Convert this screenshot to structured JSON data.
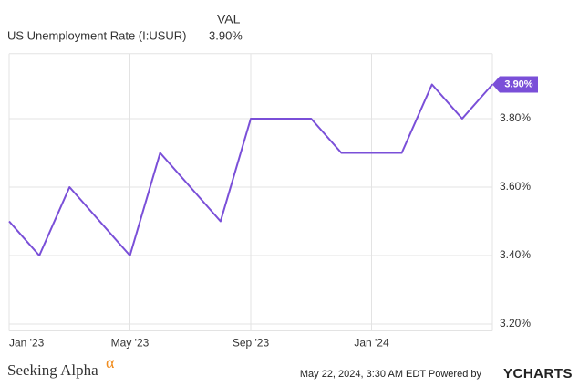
{
  "chart_data": {
    "type": "line",
    "header": {
      "column": "VAL",
      "name": "US Unemployment Rate (I:USUR)",
      "value": "3.90%"
    },
    "categories": [
      "Jan '23",
      null,
      null,
      null,
      "May '23",
      null,
      null,
      null,
      "Sep '23",
      null,
      null,
      null,
      "Jan '24",
      null,
      null,
      null,
      null
    ],
    "series": [
      {
        "name": "US Unemployment Rate (I:USUR)",
        "color": "#7a4fd8",
        "values": [
          3.5,
          3.4,
          3.6,
          3.5,
          3.4,
          3.7,
          3.6,
          3.5,
          3.8,
          3.8,
          3.8,
          3.7,
          3.7,
          3.7,
          3.9,
          3.8,
          3.9
        ],
        "end_label": "3.90%"
      }
    ],
    "ylim": [
      3.18,
      3.99
    ],
    "yticks": [
      {
        "value": 3.2,
        "label": "3.20%"
      },
      {
        "value": 3.4,
        "label": "3.40%"
      },
      {
        "value": 3.6,
        "label": "3.60%"
      },
      {
        "value": 3.8,
        "label": "3.80%"
      }
    ],
    "grid": true,
    "footer": {
      "brand": "Seeking Alpha",
      "brand_mark": "α",
      "timestamp": "May 22, 2024, 3:30 AM EDT Powered by",
      "source": "YCHARTS"
    }
  }
}
